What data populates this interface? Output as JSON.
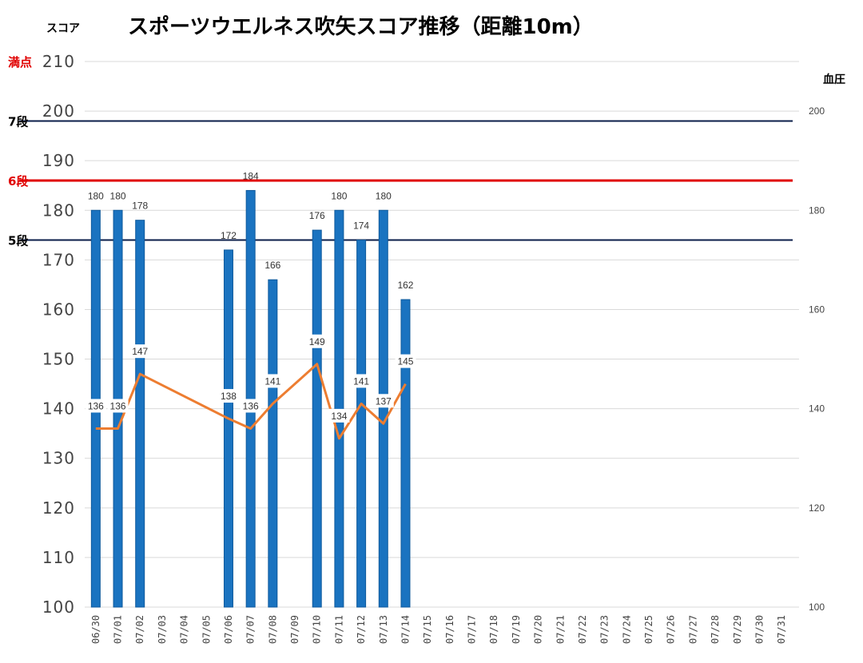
{
  "chart_data": {
    "type": "bar",
    "title": "スポーツウエルネス吹矢スコア推移（距離10m）",
    "ylabel": "スコア",
    "y2label": "血圧",
    "ylim": [
      100,
      210
    ],
    "y_ticks": [
      100,
      110,
      120,
      130,
      140,
      150,
      160,
      170,
      180,
      190,
      200,
      210
    ],
    "y2lim": [
      100,
      210
    ],
    "y2_ticks": [
      100,
      120,
      140,
      160,
      180,
      200
    ],
    "grid": true,
    "categories": [
      "06/30",
      "07/01",
      "07/02",
      "07/03",
      "07/04",
      "07/05",
      "07/06",
      "07/07",
      "07/08",
      "07/09",
      "07/10",
      "07/11",
      "07/12",
      "07/13",
      "07/14",
      "07/15",
      "07/16",
      "07/17",
      "07/18",
      "07/19",
      "07/20",
      "07/21",
      "07/22",
      "07/23",
      "07/24",
      "07/25",
      "07/26",
      "07/27",
      "07/28",
      "07/29",
      "07/30",
      "07/31"
    ],
    "series": [
      {
        "type": "bar",
        "color": "#1a73c0",
        "values": [
          180,
          180,
          178,
          null,
          null,
          null,
          172,
          184,
          166,
          null,
          176,
          180,
          174,
          180,
          162,
          null,
          null,
          null,
          null,
          null,
          null,
          null,
          null,
          null,
          null,
          null,
          null,
          null,
          null,
          null,
          null,
          null
        ]
      },
      {
        "type": "line",
        "axis": "right",
        "color": "#ed7d31",
        "values": [
          136,
          136,
          147,
          null,
          null,
          null,
          138,
          136,
          141,
          null,
          149,
          134,
          141,
          137,
          145,
          null,
          null,
          null,
          null,
          null,
          null,
          null,
          null,
          null,
          null,
          null,
          null,
          null,
          null,
          null,
          null,
          null
        ]
      }
    ],
    "reference_lines": [
      {
        "label": "満点",
        "value": 210,
        "color": "#e00000",
        "line_color": "#d9d9d9"
      },
      {
        "label": "7段",
        "value": 198,
        "color": "#000000",
        "line_color": "#0b1e4a"
      },
      {
        "label": "6段",
        "value": 186,
        "color": "#e00000",
        "line_color": "#e00000"
      },
      {
        "label": "5段",
        "value": 174,
        "color": "#000000",
        "line_color": "#0b1e4a"
      }
    ]
  }
}
